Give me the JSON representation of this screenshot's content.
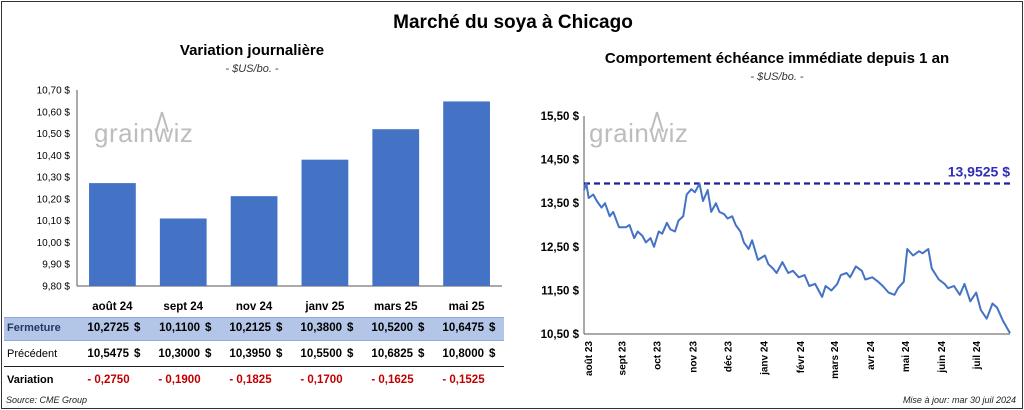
{
  "title": "Marché du soya à Chicago",
  "left_chart": {
    "title": "Variation journalière",
    "subtitle": "- $US/bo. -"
  },
  "right_chart": {
    "title": "Comportement échéance immédiate depuis 1 an",
    "subtitle": "- $US/bo. -"
  },
  "watermark": "grainwiz",
  "table": {
    "rows": [
      {
        "label": "Fermeture",
        "values": [
          "10,2725",
          "10,1100",
          "10,2125",
          "10,3800",
          "10,5200",
          "10,6475"
        ]
      },
      {
        "label": "Précédent",
        "values": [
          "10,5475",
          "10,3000",
          "10,3950",
          "10,5500",
          "10,6825",
          "10,8000"
        ]
      },
      {
        "label": "Variation",
        "values": [
          "- 0,2750",
          "- 0,1900",
          "- 0,1825",
          "- 0,1700",
          "- 0,1625",
          "- 0,1525"
        ]
      }
    ],
    "currency": "$"
  },
  "footer": {
    "source": "Source: CME Group",
    "updated": "Mise à jour: mar 30 juil 2024"
  },
  "colors": {
    "bar": "#4472C4",
    "line": "#4472C4",
    "ref_line": "#1F1FA0",
    "ref_label": "#2E2EB8",
    "negative": "#C00000",
    "table_header_bg": "#B4C6E7"
  },
  "chart_data": [
    {
      "type": "bar",
      "title": "Variation journalière",
      "subtitle": "- $US/bo. -",
      "categories": [
        "août 24",
        "sept 24",
        "nov 24",
        "janv 25",
        "mars 25",
        "mai 25"
      ],
      "values": [
        10.2725,
        10.11,
        10.2125,
        10.38,
        10.52,
        10.6475
      ],
      "ylim": [
        9.8,
        10.7
      ],
      "yticks": [
        "9,80 $",
        "9,90 $",
        "10,00 $",
        "10,10 $",
        "10,20 $",
        "10,30 $",
        "10,40 $",
        "10,50 $",
        "10,60 $",
        "10,70 $"
      ],
      "grid": false
    },
    {
      "type": "line",
      "title": "Comportement échéance immédiate depuis 1 an",
      "subtitle": "- $US/bo. -",
      "ylim": [
        10.5,
        15.5
      ],
      "yticks": [
        "10,50 $",
        "11,50 $",
        "12,50 $",
        "13,50 $",
        "14,50 $",
        "15,50 $"
      ],
      "xticks": [
        "août 23",
        "sept 23",
        "oct 23",
        "nov 23",
        "déc 23",
        "janv 24",
        "févr 24",
        "mars 24",
        "avr 24",
        "mai 24",
        "juin 24",
        "juil 24"
      ],
      "reference_line": {
        "value": 13.9525,
        "label": "13,9525 $"
      },
      "x": [
        "2023-07-31",
        "2023-08-02",
        "2023-08-04",
        "2023-08-08",
        "2023-08-11",
        "2023-08-15",
        "2023-08-18",
        "2023-08-22",
        "2023-08-25",
        "2023-08-30",
        "2023-09-05",
        "2023-09-08",
        "2023-09-12",
        "2023-09-15",
        "2023-09-19",
        "2023-09-22",
        "2023-09-26",
        "2023-09-29",
        "2023-10-03",
        "2023-10-06",
        "2023-10-10",
        "2023-10-13",
        "2023-10-17",
        "2023-10-20",
        "2023-10-24",
        "2023-10-27",
        "2023-10-31",
        "2023-11-03",
        "2023-11-07",
        "2023-11-10",
        "2023-11-14",
        "2023-11-17",
        "2023-11-21",
        "2023-11-24",
        "2023-11-28",
        "2023-12-01",
        "2023-12-05",
        "2023-12-08",
        "2023-12-12",
        "2023-12-15",
        "2023-12-19",
        "2023-12-22",
        "2023-12-27",
        "2024-01-02",
        "2024-01-05",
        "2024-01-09",
        "2024-01-12",
        "2024-01-17",
        "2024-01-22",
        "2024-01-26",
        "2024-01-31",
        "2024-02-05",
        "2024-02-09",
        "2024-02-14",
        "2024-02-20",
        "2024-02-23",
        "2024-02-28",
        "2024-03-04",
        "2024-03-07",
        "2024-03-12",
        "2024-03-15",
        "2024-03-20",
        "2024-03-25",
        "2024-03-28",
        "2024-04-03",
        "2024-04-08",
        "2024-04-12",
        "2024-04-17",
        "2024-04-22",
        "2024-04-25",
        "2024-04-30",
        "2024-05-03",
        "2024-05-08",
        "2024-05-13",
        "2024-05-16",
        "2024-05-21",
        "2024-05-24",
        "2024-05-30",
        "2024-06-04",
        "2024-06-07",
        "2024-06-12",
        "2024-06-17",
        "2024-06-21",
        "2024-06-26",
        "2024-07-01",
        "2024-07-05",
        "2024-07-10",
        "2024-07-15",
        "2024-07-19",
        "2024-07-24",
        "2024-07-30"
      ],
      "values": [
        13.8,
        13.95,
        13.62,
        13.7,
        13.55,
        13.4,
        13.5,
        13.2,
        13.3,
        12.95,
        12.95,
        13.0,
        12.7,
        12.85,
        12.75,
        12.6,
        12.7,
        12.5,
        12.85,
        12.8,
        13.05,
        12.9,
        12.85,
        13.1,
        13.2,
        13.7,
        13.82,
        13.75,
        13.95,
        13.55,
        13.8,
        13.3,
        13.5,
        13.3,
        13.25,
        13.15,
        13.2,
        13.0,
        12.85,
        12.6,
        12.45,
        12.65,
        12.2,
        12.3,
        12.1,
        12.0,
        11.9,
        12.15,
        11.9,
        11.95,
        11.8,
        11.85,
        11.6,
        11.65,
        11.35,
        11.6,
        11.5,
        11.65,
        11.85,
        11.9,
        11.8,
        12.05,
        11.95,
        11.75,
        11.8,
        11.7,
        11.6,
        11.45,
        11.4,
        11.55,
        11.7,
        12.45,
        12.3,
        12.4,
        12.35,
        12.45,
        12.0,
        11.75,
        11.65,
        11.55,
        11.6,
        11.4,
        11.65,
        11.25,
        11.45,
        11.05,
        10.85,
        11.2,
        11.1,
        10.8,
        10.52
      ]
    }
  ]
}
